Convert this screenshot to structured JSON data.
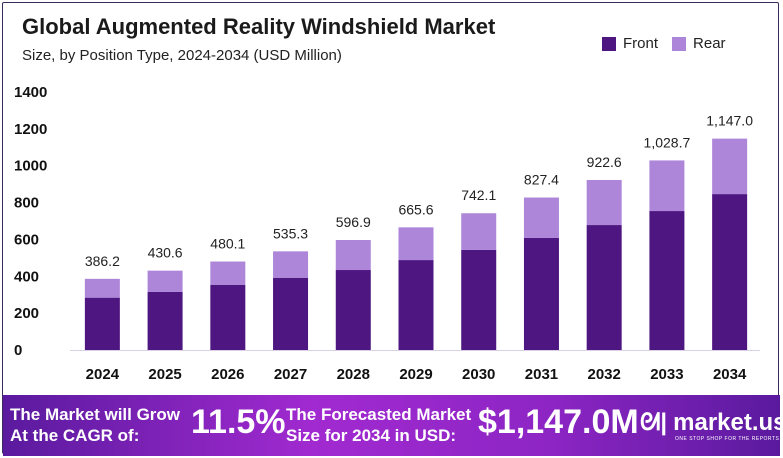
{
  "title": "Global Augmented Reality Windshield Market",
  "subtitle": "Size, by Position Type, 2024-2034 (USD Million)",
  "chart_data": {
    "type": "bar",
    "stacked": true,
    "categories": [
      "2024",
      "2025",
      "2026",
      "2027",
      "2028",
      "2029",
      "2030",
      "2031",
      "2032",
      "2033",
      "2034"
    ],
    "series": [
      {
        "name": "Front",
        "color": "#4e1680",
        "values": [
          284,
          315,
          354,
          392,
          434,
          488,
          543,
          608,
          678,
          754,
          846
        ]
      },
      {
        "name": "Rear",
        "color": "#ad86d9",
        "values": [
          102.2,
          115.6,
          126.1,
          143.3,
          162.9,
          177.6,
          199.1,
          219.4,
          244.6,
          274.7,
          301.0
        ]
      }
    ],
    "totals_labels": [
      "386.2",
      "430.6",
      "480.1",
      "535.3",
      "596.9",
      "665.6",
      "742.1",
      "827.4",
      "922.6",
      "1,028.7",
      "1,147.0"
    ],
    "totals": [
      386.2,
      430.6,
      480.1,
      535.3,
      596.9,
      665.6,
      742.1,
      827.4,
      922.6,
      1028.7,
      1147.0
    ],
    "yticks": [
      "0",
      "200",
      "400",
      "600",
      "800",
      "1000",
      "1200",
      "1400"
    ],
    "ylim": [
      0,
      1400
    ],
    "grid": false,
    "legend": "top-right"
  },
  "banner": {
    "cagr_text_1": "The Market will Grow",
    "cagr_text_2": "At the CAGR of:",
    "cagr_value": "11.5%",
    "forecast_text_1": "The Forecasted Market",
    "forecast_text_2": "Size for 2034 in USD:",
    "forecast_value": "$1,147.0M",
    "brand": "market.us",
    "tagline": "ONE STOP SHOP FOR THE REPORTS"
  }
}
